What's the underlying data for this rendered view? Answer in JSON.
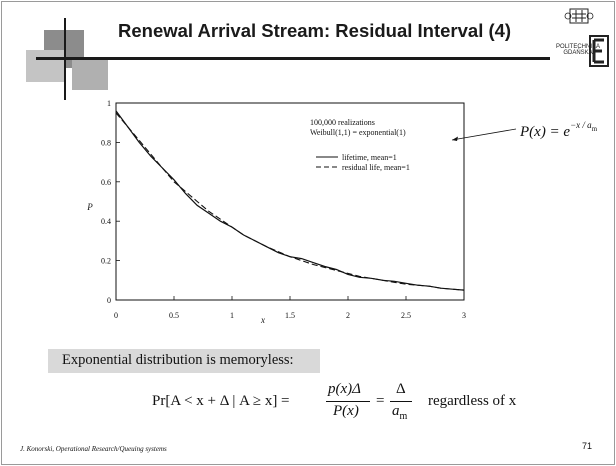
{
  "slide": {
    "title": "Renewal Arrival Stream: Residual Interval (4)",
    "logo_text_line1": "POLITECHNIKA",
    "logo_text_line2": "GDAŃSKA",
    "logo_mark": "ETI",
    "footer": "J. Konorski, Operational Research/Queuing systems",
    "page_number": "71",
    "memoryless_heading": "Exponential distribution is memoryless:",
    "formula_side": {
      "lhs": "P(x) = e",
      "exponent": "−x / a",
      "exponent_sub": "m"
    },
    "formula_main": {
      "lhs": "Pr[A < x + Δ | A ≥ x] =",
      "frac1_num": "p(x)Δ",
      "frac1_den": "P(x)",
      "eq": "=",
      "frac2_num": "Δ",
      "frac2_den": "a",
      "frac2_den_sub": "m",
      "tail": "regardless of x"
    }
  },
  "chart_data": {
    "type": "line",
    "xlabel": "x",
    "ylabel": "P",
    "xlim": [
      0,
      3
    ],
    "ylim": [
      0,
      1
    ],
    "xticks": [
      "0",
      "0.5",
      "1",
      "1.5",
      "2",
      "2.5",
      "3"
    ],
    "yticks": [
      "0",
      "0.2",
      "0.4",
      "0.6",
      "0.8",
      "1"
    ],
    "annotation_line1": "100,000 realizations",
    "annotation_line2": "Weibull(1,1) = exponential(1)",
    "grid": false,
    "legend_position": "top-right",
    "series": [
      {
        "name": "lifetime, mean=1",
        "style": "solid",
        "x": [
          0,
          0.1,
          0.2,
          0.3,
          0.4,
          0.5,
          0.6,
          0.7,
          0.8,
          0.9,
          1.0,
          1.1,
          1.2,
          1.3,
          1.4,
          1.5,
          1.6,
          1.7,
          1.8,
          1.9,
          2.0,
          2.1,
          2.2,
          2.3,
          2.4,
          2.5,
          2.6,
          2.7,
          2.8,
          2.9,
          3.0
        ],
        "values": [
          0.96,
          0.88,
          0.8,
          0.73,
          0.67,
          0.61,
          0.54,
          0.48,
          0.44,
          0.4,
          0.37,
          0.33,
          0.3,
          0.27,
          0.24,
          0.22,
          0.21,
          0.19,
          0.17,
          0.155,
          0.13,
          0.115,
          0.11,
          0.1,
          0.095,
          0.085,
          0.075,
          0.07,
          0.06,
          0.055,
          0.05
        ]
      },
      {
        "name": "residual life, mean=1",
        "style": "dashed",
        "x": [
          0,
          0.1,
          0.2,
          0.3,
          0.4,
          0.5,
          0.6,
          0.7,
          0.8,
          0.9,
          1.0,
          1.1,
          1.2,
          1.3,
          1.4,
          1.5,
          1.6,
          1.7,
          1.8,
          1.9,
          2.0,
          2.1,
          2.2,
          2.3,
          2.4,
          2.5,
          2.6,
          2.7,
          2.8,
          2.9,
          3.0
        ],
        "values": [
          0.95,
          0.88,
          0.81,
          0.74,
          0.67,
          0.6,
          0.55,
          0.5,
          0.45,
          0.41,
          0.37,
          0.33,
          0.3,
          0.27,
          0.245,
          0.22,
          0.2,
          0.18,
          0.165,
          0.15,
          0.135,
          0.12,
          0.11,
          0.1,
          0.09,
          0.08,
          0.075,
          0.07,
          0.06,
          0.055,
          0.05
        ]
      }
    ]
  },
  "colors": {
    "text": "#111111",
    "box": "#d9d9d9",
    "deco_dark": "#8c8c8c",
    "deco_light": "#c8c8c8"
  }
}
